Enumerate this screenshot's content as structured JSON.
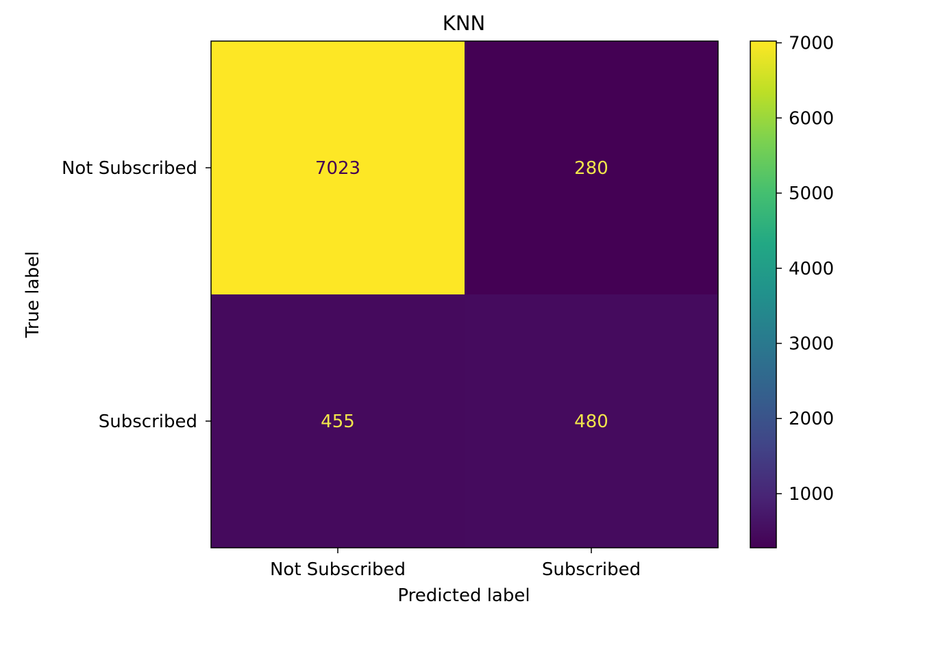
{
  "chart_data": {
    "type": "heatmap",
    "title": "KNN",
    "xlabel": "Predicted label",
    "ylabel": "True label",
    "x_categories": [
      "Not Subscribed",
      "Subscribed"
    ],
    "y_categories": [
      "Not Subscribed",
      "Subscribed"
    ],
    "matrix": [
      [
        7023,
        280
      ],
      [
        455,
        480
      ]
    ],
    "colormap": "viridis",
    "colorbar": {
      "range": [
        280,
        7023
      ],
      "ticks": [
        1000,
        2000,
        3000,
        4000,
        5000,
        6000,
        7000
      ]
    },
    "colors": {
      "low_text": "#f1e54b",
      "high_text": "#440154"
    }
  }
}
